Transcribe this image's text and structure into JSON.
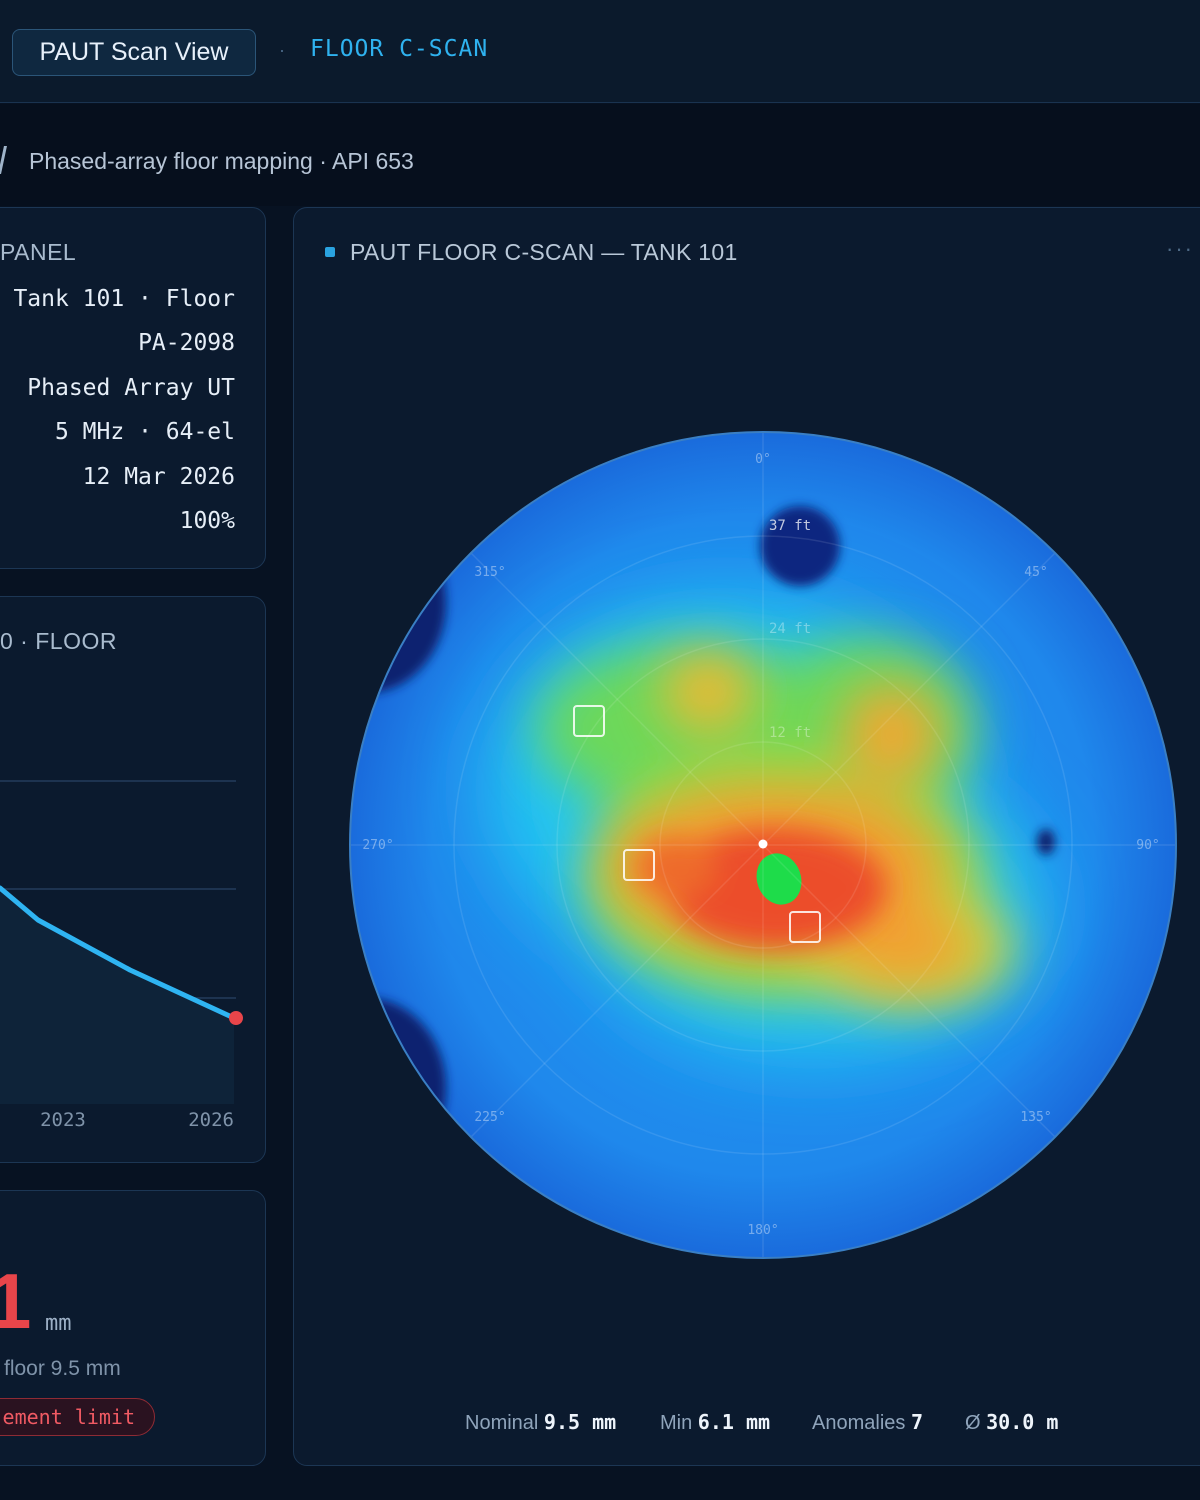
{
  "header": {
    "app_title": "PAUT Scan View",
    "separator": "·",
    "view_name": "FLOOR C-SCAN"
  },
  "subtitle": "Phased-array floor mapping · API 653",
  "info_panel": {
    "title": "PANEL",
    "rows": [
      "Tank 101 · Floor",
      "PA-2098",
      "Phased Array UT",
      "5 MHz · 64-el",
      "12 Mar 2026",
      "100%"
    ]
  },
  "trend_panel": {
    "title": "0 · FLOOR",
    "x_tick_labels": [
      "2023",
      "2026"
    ]
  },
  "min_panel": {
    "value": "1",
    "unit": "mm",
    "sub": "floor 9.5 mm",
    "badge": "ement limit"
  },
  "scan_panel": {
    "title": "PAUT FLOOR C-SCAN — TANK 101",
    "more_icon": "more-dots-icon",
    "more_label": "···",
    "angle_labels": [
      "0°",
      "45°",
      "90°",
      "135°",
      "180°",
      "225°",
      "270°",
      "315°"
    ],
    "ring_labels": [
      "37 ft",
      "24 ft",
      "12 ft"
    ],
    "legend": {
      "nominal_label": "Nominal",
      "nominal_value": "9.5 mm",
      "min_label": "Min",
      "min_value": "6.1 mm",
      "anomalies_label": "Anomalies",
      "anomalies_value": "7",
      "diameter_symbol": "Ø",
      "diameter_value": "30.0 m"
    }
  },
  "colors": {
    "accent": "#2fb2ef",
    "alarm": "#e8454a",
    "line": "#2fb4f2"
  }
}
